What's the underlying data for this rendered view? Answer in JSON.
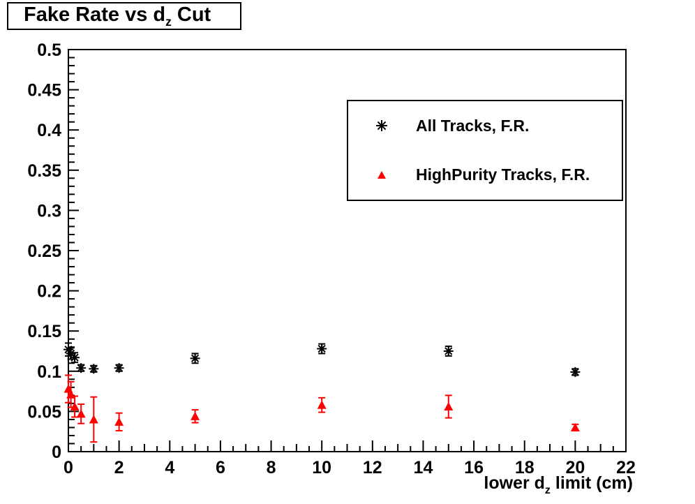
{
  "title": {
    "pre": "Fake Rate vs d",
    "sub": "z",
    "post": " Cut"
  },
  "colors": {
    "background": "#ffffff",
    "axis": "#000000",
    "all_tracks": "#000000",
    "highpurity_tracks": "#ff0000"
  },
  "chart_data": {
    "type": "scatter",
    "title": "Fake Rate vs d_z Cut",
    "xlabel": "lower d_z limit (cm)",
    "xlabel_parts": {
      "pre": "lower d",
      "sub": "z",
      "post": " limit (cm)"
    },
    "ylabel": "",
    "xlim": [
      0,
      22
    ],
    "ylim": [
      0,
      0.5
    ],
    "grid": false,
    "legend_position": "upper right",
    "x_major_step": 2,
    "x_minor_step": 0.5,
    "y_major_step": 0.05,
    "y_minor_step": 0.01,
    "x_tick_labels": [
      "0",
      "2",
      "4",
      "6",
      "8",
      "10",
      "12",
      "14",
      "16",
      "18",
      "20",
      "22"
    ],
    "y_tick_labels": [
      "0",
      "0.05",
      "0.1",
      "0.15",
      "0.2",
      "0.25",
      "0.3",
      "0.35",
      "0.4",
      "0.45",
      "0.5"
    ],
    "series": [
      {
        "name": "All Tracks, F.R.",
        "marker": "asterisk",
        "color": "#000000",
        "x": [
          0,
          0.1,
          0.25,
          0.5,
          1,
          2,
          5,
          10,
          15,
          20
        ],
        "y": [
          0.127,
          0.122,
          0.117,
          0.104,
          0.103,
          0.104,
          0.116,
          0.128,
          0.125,
          0.099
        ],
        "yerr": [
          0.008,
          0.007,
          0.006,
          0.004,
          0.004,
          0.004,
          0.006,
          0.006,
          0.006,
          0.004
        ]
      },
      {
        "name": "HighPurity Tracks, F.R.",
        "marker": "triangle",
        "color": "#ff0000",
        "x": [
          0,
          0.1,
          0.25,
          0.5,
          1,
          2,
          5,
          10,
          15,
          20
        ],
        "y": [
          0.078,
          0.071,
          0.056,
          0.047,
          0.04,
          0.037,
          0.044,
          0.058,
          0.056,
          0.03
        ],
        "yerr": [
          0.017,
          0.016,
          0.013,
          0.012,
          0.028,
          0.011,
          0.008,
          0.009,
          0.014,
          0.004
        ]
      }
    ]
  }
}
